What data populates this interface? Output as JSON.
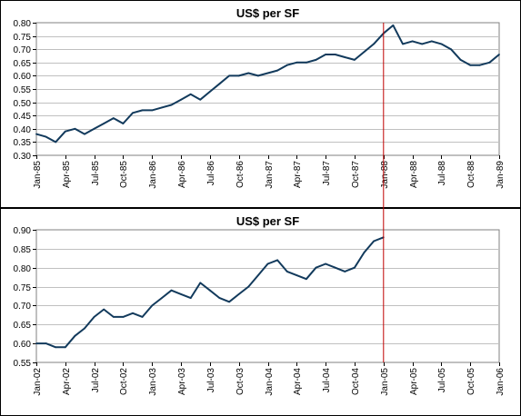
{
  "colors": {
    "series": "#123a5c",
    "marker": "#c00000",
    "grid": "#c0c0c0",
    "axis": "#808080"
  },
  "chart_data": [
    {
      "type": "line",
      "title": "US$ per SF",
      "xlabel": "",
      "ylabel": "",
      "ylim": [
        0.3,
        0.8
      ],
      "yticks": [
        0.3,
        0.35,
        0.4,
        0.45,
        0.5,
        0.55,
        0.6,
        0.65,
        0.7,
        0.75,
        0.8
      ],
      "ytick_labels": [
        "0.30",
        "0.35",
        "0.40",
        "0.45",
        "0.50",
        "0.55",
        "0.60",
        "0.65",
        "0.70",
        "0.75",
        "0.80"
      ],
      "x_tick_labels": [
        "Jan-85",
        "Apr-85",
        "Jul-85",
        "Oct-85",
        "Jan-86",
        "Apr-86",
        "Jul-86",
        "Oct-86",
        "Jan-87",
        "Apr-87",
        "Jul-87",
        "Oct-87",
        "Jan-88",
        "Apr-88",
        "Jul-88",
        "Oct-88",
        "Jan-89"
      ],
      "grid": "horizontal",
      "marker_line_at": "Jan-88",
      "series": [
        {
          "x": [
            "Jan-85",
            "Feb-85",
            "Mar-85",
            "Apr-85",
            "May-85",
            "Jun-85",
            "Jul-85",
            "Aug-85",
            "Sep-85",
            "Oct-85",
            "Nov-85",
            "Dec-85",
            "Jan-86",
            "Feb-86",
            "Mar-86",
            "Apr-86",
            "May-86",
            "Jun-86",
            "Jul-86",
            "Aug-86",
            "Sep-86",
            "Oct-86",
            "Nov-86",
            "Dec-86",
            "Jan-87",
            "Feb-87",
            "Mar-87",
            "Apr-87",
            "May-87",
            "Jun-87",
            "Jul-87",
            "Aug-87",
            "Sep-87",
            "Oct-87",
            "Nov-87",
            "Dec-87",
            "Jan-88",
            "Feb-88",
            "Mar-88",
            "Apr-88",
            "May-88",
            "Jun-88",
            "Jul-88",
            "Aug-88",
            "Sep-88",
            "Oct-88",
            "Nov-88",
            "Dec-88",
            "Jan-89"
          ],
          "values": [
            0.38,
            0.37,
            0.35,
            0.39,
            0.4,
            0.38,
            0.4,
            0.42,
            0.44,
            0.42,
            0.46,
            0.47,
            0.47,
            0.48,
            0.49,
            0.51,
            0.53,
            0.51,
            0.54,
            0.57,
            0.6,
            0.6,
            0.61,
            0.6,
            0.61,
            0.62,
            0.64,
            0.65,
            0.65,
            0.66,
            0.68,
            0.68,
            0.67,
            0.66,
            0.69,
            0.72,
            0.76,
            0.79,
            0.72,
            0.73,
            0.72,
            0.73,
            0.72,
            0.7,
            0.66,
            0.64,
            0.64,
            0.65,
            0.68
          ]
        }
      ]
    },
    {
      "type": "line",
      "title": "US$ per SF",
      "xlabel": "",
      "ylabel": "",
      "ylim": [
        0.55,
        0.9
      ],
      "yticks": [
        0.55,
        0.6,
        0.65,
        0.7,
        0.75,
        0.8,
        0.85,
        0.9
      ],
      "ytick_labels": [
        "0.55",
        "0.60",
        "0.65",
        "0.70",
        "0.75",
        "0.80",
        "0.85",
        "0.90"
      ],
      "x_tick_labels": [
        "Jan-02",
        "Apr-02",
        "Jul-02",
        "Oct-02",
        "Jan-03",
        "Apr-03",
        "Jul-03",
        "Oct-03",
        "Jan-04",
        "Apr-04",
        "Jul-04",
        "Oct-04",
        "Jan-05",
        "Apr-05",
        "Jul-05",
        "Oct-05",
        "Jan-06"
      ],
      "grid": "horizontal",
      "marker_line_at": "Jan-05",
      "series": [
        {
          "x": [
            "Jan-02",
            "Feb-02",
            "Mar-02",
            "Apr-02",
            "May-02",
            "Jun-02",
            "Jul-02",
            "Aug-02",
            "Sep-02",
            "Oct-02",
            "Nov-02",
            "Dec-02",
            "Jan-03",
            "Feb-03",
            "Mar-03",
            "Apr-03",
            "May-03",
            "Jun-03",
            "Jul-03",
            "Aug-03",
            "Sep-03",
            "Oct-03",
            "Nov-03",
            "Dec-03",
            "Jan-04",
            "Feb-04",
            "Mar-04",
            "Apr-04",
            "May-04",
            "Jun-04",
            "Jul-04",
            "Aug-04",
            "Sep-04",
            "Oct-04",
            "Nov-04",
            "Dec-04",
            "Jan-05"
          ],
          "values": [
            0.6,
            0.6,
            0.59,
            0.59,
            0.62,
            0.64,
            0.67,
            0.69,
            0.67,
            0.67,
            0.68,
            0.67,
            0.7,
            0.72,
            0.74,
            0.73,
            0.72,
            0.76,
            0.74,
            0.72,
            0.71,
            0.73,
            0.75,
            0.78,
            0.81,
            0.82,
            0.79,
            0.78,
            0.77,
            0.8,
            0.81,
            0.8,
            0.79,
            0.8,
            0.84,
            0.87,
            0.88
          ]
        }
      ]
    }
  ]
}
